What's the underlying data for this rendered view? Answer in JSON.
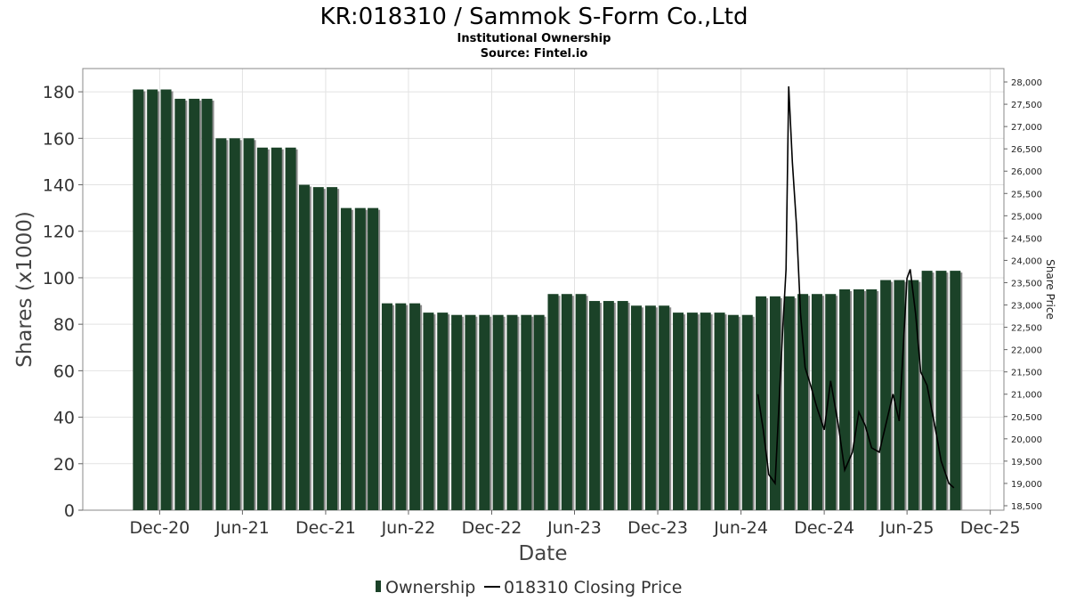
{
  "title": "KR:018310 / Sammok S-Form Co.,Ltd",
  "subtitle": "Institutional Ownership",
  "source": "Source: Fintel.io",
  "legend": {
    "ownership": "Ownership",
    "price": "018310 Closing Price"
  },
  "colors": {
    "bar": "#1b4228",
    "bar_shadow": "#8c8c8c",
    "line": "#000000",
    "grid": "#e2e2e2"
  },
  "chart_data": {
    "type": "bar",
    "title": "KR:018310 / Sammok S-Form Co.,Ltd",
    "subtitle": "Institutional Ownership",
    "xlabel": "Date",
    "ylabel": "Shares (x1000)",
    "y2label": "Share Price",
    "ylim": [
      0,
      190
    ],
    "y2lim": [
      18400,
      28300
    ],
    "yticks": [
      0,
      20,
      40,
      60,
      80,
      100,
      120,
      140,
      160,
      180
    ],
    "y2ticks": [
      18500,
      19000,
      19500,
      20000,
      20500,
      21000,
      21500,
      22000,
      22500,
      23000,
      23500,
      24000,
      24500,
      25000,
      25500,
      26000,
      26500,
      27000,
      27500,
      28000
    ],
    "y2tick_labels": [
      "18,500",
      "19,000",
      "19,500",
      "20,000",
      "20,500",
      "21,000",
      "21,500",
      "22,000",
      "22,500",
      "23,000",
      "23,500",
      "24,000",
      "24,500",
      "25,000",
      "25,500",
      "26,000",
      "26,500",
      "27,000",
      "27,500",
      "28,000"
    ],
    "xlim": [
      "2020-06-15",
      "2025-12-31"
    ],
    "xticks": [
      {
        "date": "2020-12-01",
        "label": "Dec-20"
      },
      {
        "date": "2021-06-01",
        "label": "Jun-21"
      },
      {
        "date": "2021-12-01",
        "label": "Dec-21"
      },
      {
        "date": "2022-06-01",
        "label": "Jun-22"
      },
      {
        "date": "2022-12-01",
        "label": "Dec-22"
      },
      {
        "date": "2023-06-01",
        "label": "Jun-23"
      },
      {
        "date": "2023-12-01",
        "label": "Dec-23"
      },
      {
        "date": "2024-06-01",
        "label": "Jun-24"
      },
      {
        "date": "2024-12-01",
        "label": "Dec-24"
      },
      {
        "date": "2025-06-01",
        "label": "Jun-25"
      },
      {
        "date": "2025-12-01",
        "label": "Dec-25"
      }
    ],
    "grid": true,
    "legend_position": "bottom",
    "series": [
      {
        "name": "Ownership",
        "type": "bar",
        "points": [
          {
            "date": "2020-10-15",
            "value": 181
          },
          {
            "date": "2020-11-15",
            "value": 181
          },
          {
            "date": "2020-12-15",
            "value": 181
          },
          {
            "date": "2021-01-15",
            "value": 177
          },
          {
            "date": "2021-02-15",
            "value": 177
          },
          {
            "date": "2021-03-15",
            "value": 177
          },
          {
            "date": "2021-04-15",
            "value": 160
          },
          {
            "date": "2021-05-15",
            "value": 160
          },
          {
            "date": "2021-06-15",
            "value": 160
          },
          {
            "date": "2021-07-15",
            "value": 156
          },
          {
            "date": "2021-08-15",
            "value": 156
          },
          {
            "date": "2021-09-15",
            "value": 156
          },
          {
            "date": "2021-10-15",
            "value": 140
          },
          {
            "date": "2021-11-15",
            "value": 139
          },
          {
            "date": "2021-12-15",
            "value": 139
          },
          {
            "date": "2022-01-15",
            "value": 130
          },
          {
            "date": "2022-02-15",
            "value": 130
          },
          {
            "date": "2022-03-15",
            "value": 130
          },
          {
            "date": "2022-04-15",
            "value": 89
          },
          {
            "date": "2022-05-15",
            "value": 89
          },
          {
            "date": "2022-06-15",
            "value": 89
          },
          {
            "date": "2022-07-15",
            "value": 85
          },
          {
            "date": "2022-08-15",
            "value": 85
          },
          {
            "date": "2022-09-15",
            "value": 84
          },
          {
            "date": "2022-10-15",
            "value": 84
          },
          {
            "date": "2022-11-15",
            "value": 84
          },
          {
            "date": "2022-12-15",
            "value": 84
          },
          {
            "date": "2023-01-15",
            "value": 84
          },
          {
            "date": "2023-02-15",
            "value": 84
          },
          {
            "date": "2023-03-15",
            "value": 84
          },
          {
            "date": "2023-04-15",
            "value": 93
          },
          {
            "date": "2023-05-15",
            "value": 93
          },
          {
            "date": "2023-06-15",
            "value": 93
          },
          {
            "date": "2023-07-15",
            "value": 90
          },
          {
            "date": "2023-08-15",
            "value": 90
          },
          {
            "date": "2023-09-15",
            "value": 90
          },
          {
            "date": "2023-10-15",
            "value": 88
          },
          {
            "date": "2023-11-15",
            "value": 88
          },
          {
            "date": "2023-12-15",
            "value": 88
          },
          {
            "date": "2024-01-15",
            "value": 85
          },
          {
            "date": "2024-02-15",
            "value": 85
          },
          {
            "date": "2024-03-15",
            "value": 85
          },
          {
            "date": "2024-04-15",
            "value": 85
          },
          {
            "date": "2024-05-15",
            "value": 84
          },
          {
            "date": "2024-06-15",
            "value": 84
          },
          {
            "date": "2024-07-15",
            "value": 92
          },
          {
            "date": "2024-08-15",
            "value": 92
          },
          {
            "date": "2024-09-15",
            "value": 92
          },
          {
            "date": "2024-10-15",
            "value": 93
          },
          {
            "date": "2024-11-15",
            "value": 93
          },
          {
            "date": "2024-12-15",
            "value": 93
          },
          {
            "date": "2025-01-15",
            "value": 95
          },
          {
            "date": "2025-02-15",
            "value": 95
          },
          {
            "date": "2025-03-15",
            "value": 95
          },
          {
            "date": "2025-04-15",
            "value": 99
          },
          {
            "date": "2025-05-15",
            "value": 99
          },
          {
            "date": "2025-06-15",
            "value": 99
          },
          {
            "date": "2025-07-15",
            "value": 103
          },
          {
            "date": "2025-08-15",
            "value": 103
          },
          {
            "date": "2025-09-15",
            "value": 103
          }
        ]
      },
      {
        "name": "018310 Closing Price",
        "type": "line",
        "axis": "right",
        "points": [
          {
            "date": "2024-07-08",
            "value": 21000
          },
          {
            "date": "2024-07-20",
            "value": 20200
          },
          {
            "date": "2024-08-01",
            "value": 19200
          },
          {
            "date": "2024-08-15",
            "value": 19000
          },
          {
            "date": "2024-09-01",
            "value": 22500
          },
          {
            "date": "2024-09-08",
            "value": 23800
          },
          {
            "date": "2024-09-14",
            "value": 27900
          },
          {
            "date": "2024-09-22",
            "value": 26200
          },
          {
            "date": "2024-10-01",
            "value": 24800
          },
          {
            "date": "2024-10-10",
            "value": 22800
          },
          {
            "date": "2024-10-20",
            "value": 21600
          },
          {
            "date": "2024-11-01",
            "value": 21200
          },
          {
            "date": "2024-11-15",
            "value": 20700
          },
          {
            "date": "2024-12-01",
            "value": 20200
          },
          {
            "date": "2024-12-15",
            "value": 21300
          },
          {
            "date": "2025-01-01",
            "value": 20300
          },
          {
            "date": "2025-01-15",
            "value": 19300
          },
          {
            "date": "2025-02-01",
            "value": 19700
          },
          {
            "date": "2025-02-15",
            "value": 20600
          },
          {
            "date": "2025-03-01",
            "value": 20300
          },
          {
            "date": "2025-03-15",
            "value": 19800
          },
          {
            "date": "2025-04-01",
            "value": 19700
          },
          {
            "date": "2025-04-15",
            "value": 20300
          },
          {
            "date": "2025-05-01",
            "value": 21000
          },
          {
            "date": "2025-05-15",
            "value": 20400
          },
          {
            "date": "2025-06-01",
            "value": 23600
          },
          {
            "date": "2025-06-08",
            "value": 23800
          },
          {
            "date": "2025-06-20",
            "value": 22800
          },
          {
            "date": "2025-07-01",
            "value": 21500
          },
          {
            "date": "2025-07-15",
            "value": 21200
          },
          {
            "date": "2025-08-01",
            "value": 20300
          },
          {
            "date": "2025-08-15",
            "value": 19500
          },
          {
            "date": "2025-09-01",
            "value": 19000
          },
          {
            "date": "2025-09-12",
            "value": 18900
          }
        ]
      }
    ]
  }
}
